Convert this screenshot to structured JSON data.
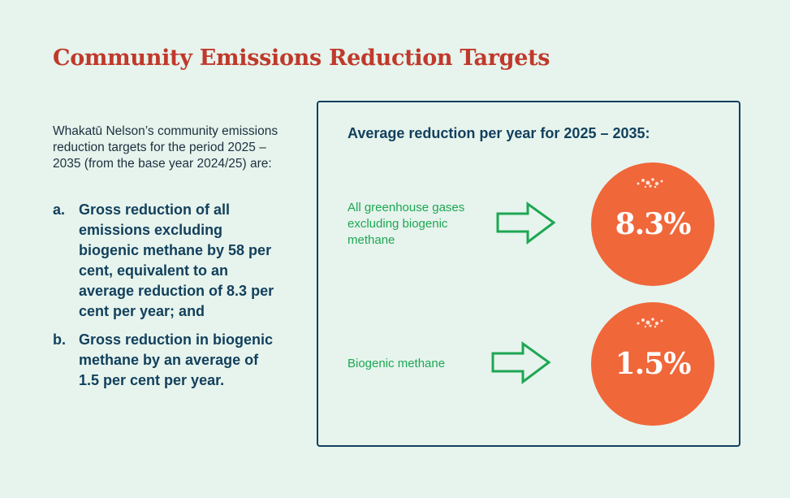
{
  "title": "Community Emissions Reduction Targets",
  "intro": "Whakatū Nelson’s community emissions reduction targets for the period 2025 – 2035 (from the base year 2024/25) are:",
  "targets": [
    {
      "marker": "a.",
      "text": "Gross reduction of all emissions excluding biogenic methane by 58 per cent, equivalent to an average reduction of 8.3 per cent per year; and"
    },
    {
      "marker": "b.",
      "text": "Gross reduction in biogenic methane by an average of 1.5 per cent per year."
    }
  ],
  "panel": {
    "title": "Average reduction per year for 2025 – 2035:",
    "rows": [
      {
        "label": "All greenhouse gases excluding biogenic methane",
        "value": "8.3%"
      },
      {
        "label": "Biogenic methane",
        "value": "1.5%"
      }
    ]
  },
  "colors": {
    "background": "#e6f4ed",
    "title": "#c0392b",
    "navy": "#123f5c",
    "green": "#1ea653",
    "orange": "#f0673a"
  },
  "icons": [
    "right-arrow-icon"
  ]
}
